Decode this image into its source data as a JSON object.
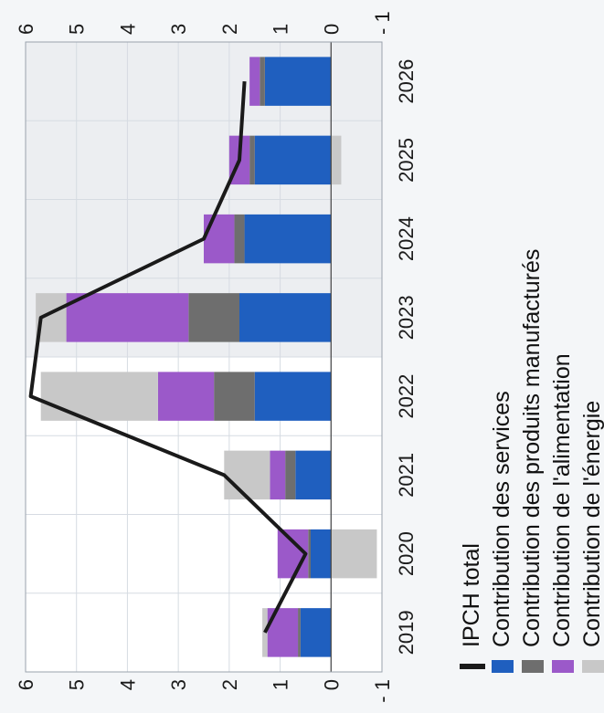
{
  "chart_data": {
    "type": "bar",
    "stacked": true,
    "categories": [
      "2019",
      "2020",
      "2021",
      "2022",
      "2023",
      "2024",
      "2025",
      "2026"
    ],
    "series": [
      {
        "name": "Contribution des services",
        "color": "#1f5fbf",
        "values": [
          0.6,
          0.4,
          0.7,
          1.5,
          1.8,
          1.7,
          1.5,
          1.3
        ]
      },
      {
        "name": "Contribution des produits manufacturés",
        "color": "#6e6e6e",
        "values": [
          0.05,
          0.05,
          0.2,
          0.8,
          1.0,
          0.2,
          0.1,
          0.1
        ]
      },
      {
        "name": "Contribution de l'alimentation",
        "color": "#9b59c9",
        "values": [
          0.6,
          0.6,
          0.3,
          1.1,
          2.4,
          0.6,
          0.4,
          0.2
        ]
      },
      {
        "name": "Contribution de l'énergie",
        "color": "#c8c8c8",
        "values": [
          0.1,
          -0.9,
          0.9,
          2.3,
          0.6,
          0.0,
          -0.2,
          0.0
        ]
      }
    ],
    "line": {
      "name": "IPCH total",
      "color": "#1a1a1a",
      "values": [
        1.3,
        0.5,
        2.1,
        5.9,
        5.7,
        2.5,
        1.8,
        1.7
      ]
    },
    "ylim": [
      -1,
      6
    ],
    "yticks": [
      "- 1",
      "0",
      "1",
      "2",
      "3",
      "4",
      "5",
      "6"
    ],
    "ytick_values": [
      -1,
      0,
      1,
      2,
      3,
      4,
      5,
      6
    ],
    "shaded_from_category": "2023",
    "grid": true,
    "legend_position": "bottom"
  }
}
